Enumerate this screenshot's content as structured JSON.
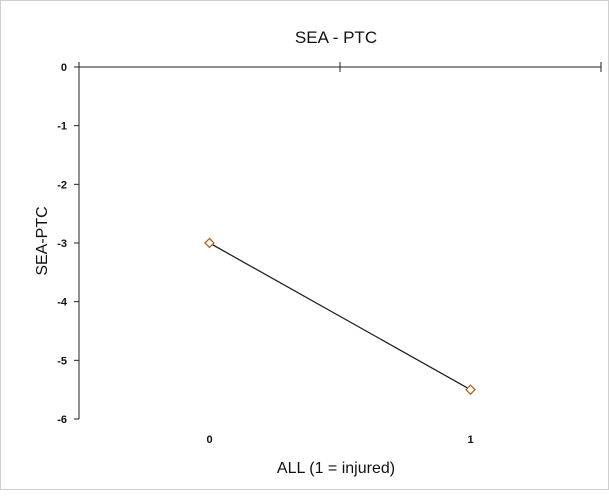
{
  "chart_data": {
    "type": "line",
    "title": "SEA - PTC",
    "xlabel": "ALL (1 = injured)",
    "ylabel": "SEA-PTC",
    "x_tick_labels": [
      "0",
      "1"
    ],
    "y_tick_labels": [
      "0",
      "-1",
      "-2",
      "-3",
      "-4",
      "-5",
      "-6"
    ],
    "xlim": [
      -0.5,
      1.5
    ],
    "ylim": [
      -6,
      0
    ],
    "grid": false,
    "legend": "none",
    "series": [
      {
        "x": [
          0,
          1
        ],
        "y": [
          -3.0,
          -5.5
        ],
        "line_color": "#222222",
        "marker": "diamond-open",
        "marker_color": "#b5651d"
      }
    ]
  }
}
